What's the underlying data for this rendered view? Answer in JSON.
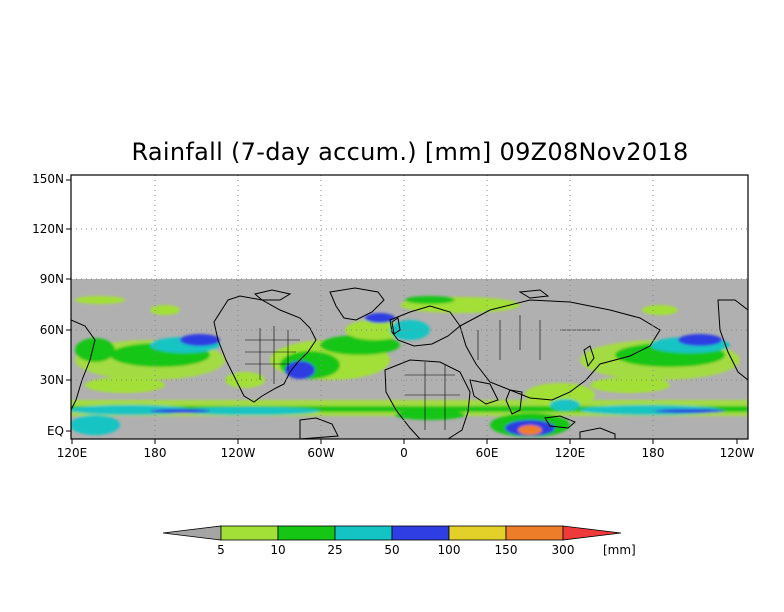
{
  "title": "Rainfall (7-day accum.) [mm] 09Z08Nov2018",
  "map": {
    "lat_range": [
      -3,
      156
    ],
    "lon_start": "120E",
    "lat_tick_labels": [
      "150N",
      "120N",
      "90N",
      "60N",
      "30N",
      "EQ"
    ],
    "lon_tick_labels": [
      "120E",
      "180",
      "120W",
      "60W",
      "0",
      "60E",
      "120E",
      "180",
      "120W"
    ],
    "no_data_above": "90N",
    "missing_color": "#b0b0b0",
    "gridlines": "dotted"
  },
  "colorbar": {
    "thresholds": [
      "5",
      "10",
      "25",
      "50",
      "100",
      "150",
      "300"
    ],
    "unit": "[mm]",
    "colors": [
      "#a5a5a5",
      "#a2e038",
      "#15c615",
      "#14c4c4",
      "#2e3ee2",
      "#e3d12a",
      "#ee7d2a",
      "#ee3a3a"
    ]
  }
}
